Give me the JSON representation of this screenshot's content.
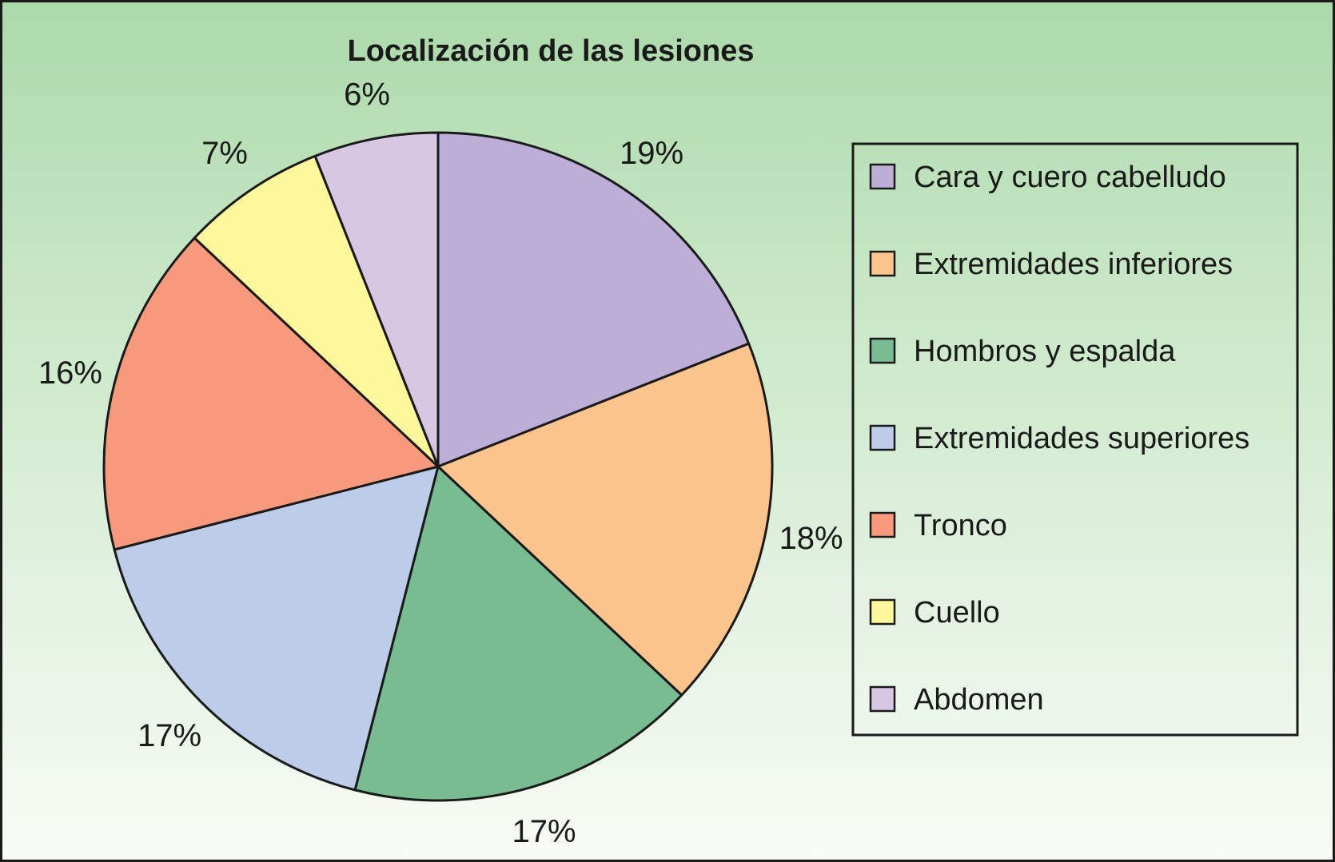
{
  "chart_data": {
    "type": "pie",
    "title": "Localización de las lesiones",
    "start_angle_deg": 0,
    "direction": "clockwise",
    "legend_position": "right",
    "slices": [
      {
        "label": "Cara y cuero cabelludo",
        "value": 19,
        "value_label": "19%",
        "color": "#bcaed6"
      },
      {
        "label": "Extremidades inferiores",
        "value": 18,
        "value_label": "18%",
        "color": "#fac48c"
      },
      {
        "label": "Hombros y espalda",
        "value": 17,
        "value_label": "17%",
        "color": "#79bc91"
      },
      {
        "label": "Extremidades superiores",
        "value": 17,
        "value_label": "17%",
        "color": "#bccce9"
      },
      {
        "label": "Tronco",
        "value": 16,
        "value_label": "16%",
        "color": "#f7997c"
      },
      {
        "label": "Cuello",
        "value": 7,
        "value_label": "7%",
        "color": "#fef79c"
      },
      {
        "label": "Abdomen",
        "value": 6,
        "value_label": "6%",
        "color": "#d8c7e3"
      }
    ]
  }
}
